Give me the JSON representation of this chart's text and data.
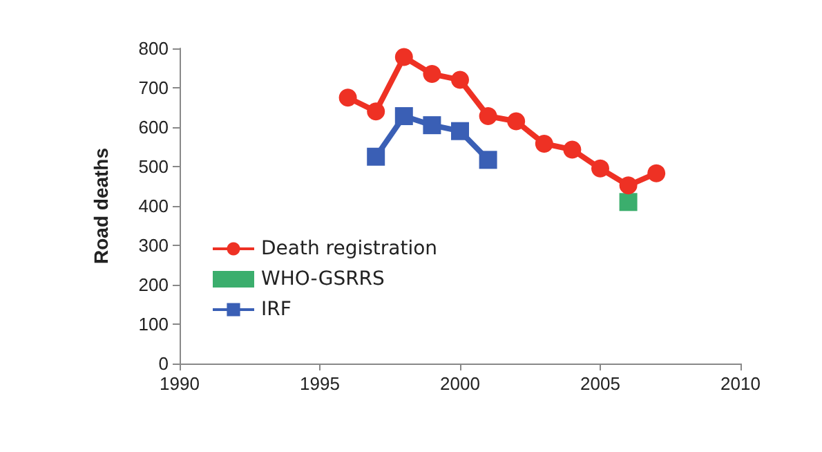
{
  "chart_data": {
    "type": "line",
    "ylabel": "Road deaths",
    "xlim": [
      1990,
      2010
    ],
    "xticks": [
      1990,
      1995,
      2000,
      2005,
      2010
    ],
    "ylim": [
      0,
      800
    ],
    "yticks": [
      0,
      100,
      200,
      300,
      400,
      500,
      600,
      700,
      800
    ],
    "grid": false,
    "legend": "left",
    "series": [
      {
        "name": "Death registration",
        "color": "#ee3124",
        "marker": "circle",
        "x": [
          1996,
          1997,
          1998,
          1999,
          2000,
          2001,
          2002,
          2003,
          2004,
          2005,
          2006,
          2007
        ],
        "values": [
          675,
          640,
          778,
          735,
          720,
          628,
          615,
          558,
          543,
          495,
          452,
          483
        ]
      },
      {
        "name": "WHO-GSRRS",
        "type": "scatter",
        "color": "#0a9a48",
        "marker": "square",
        "x": [
          2006
        ],
        "values": [
          410
        ]
      },
      {
        "name": "IRF",
        "color": "#3a5fb5",
        "marker": "square",
        "x": [
          1997,
          1998,
          1999,
          2000,
          2001
        ],
        "values": [
          525,
          628,
          605,
          590,
          517
        ]
      }
    ]
  }
}
